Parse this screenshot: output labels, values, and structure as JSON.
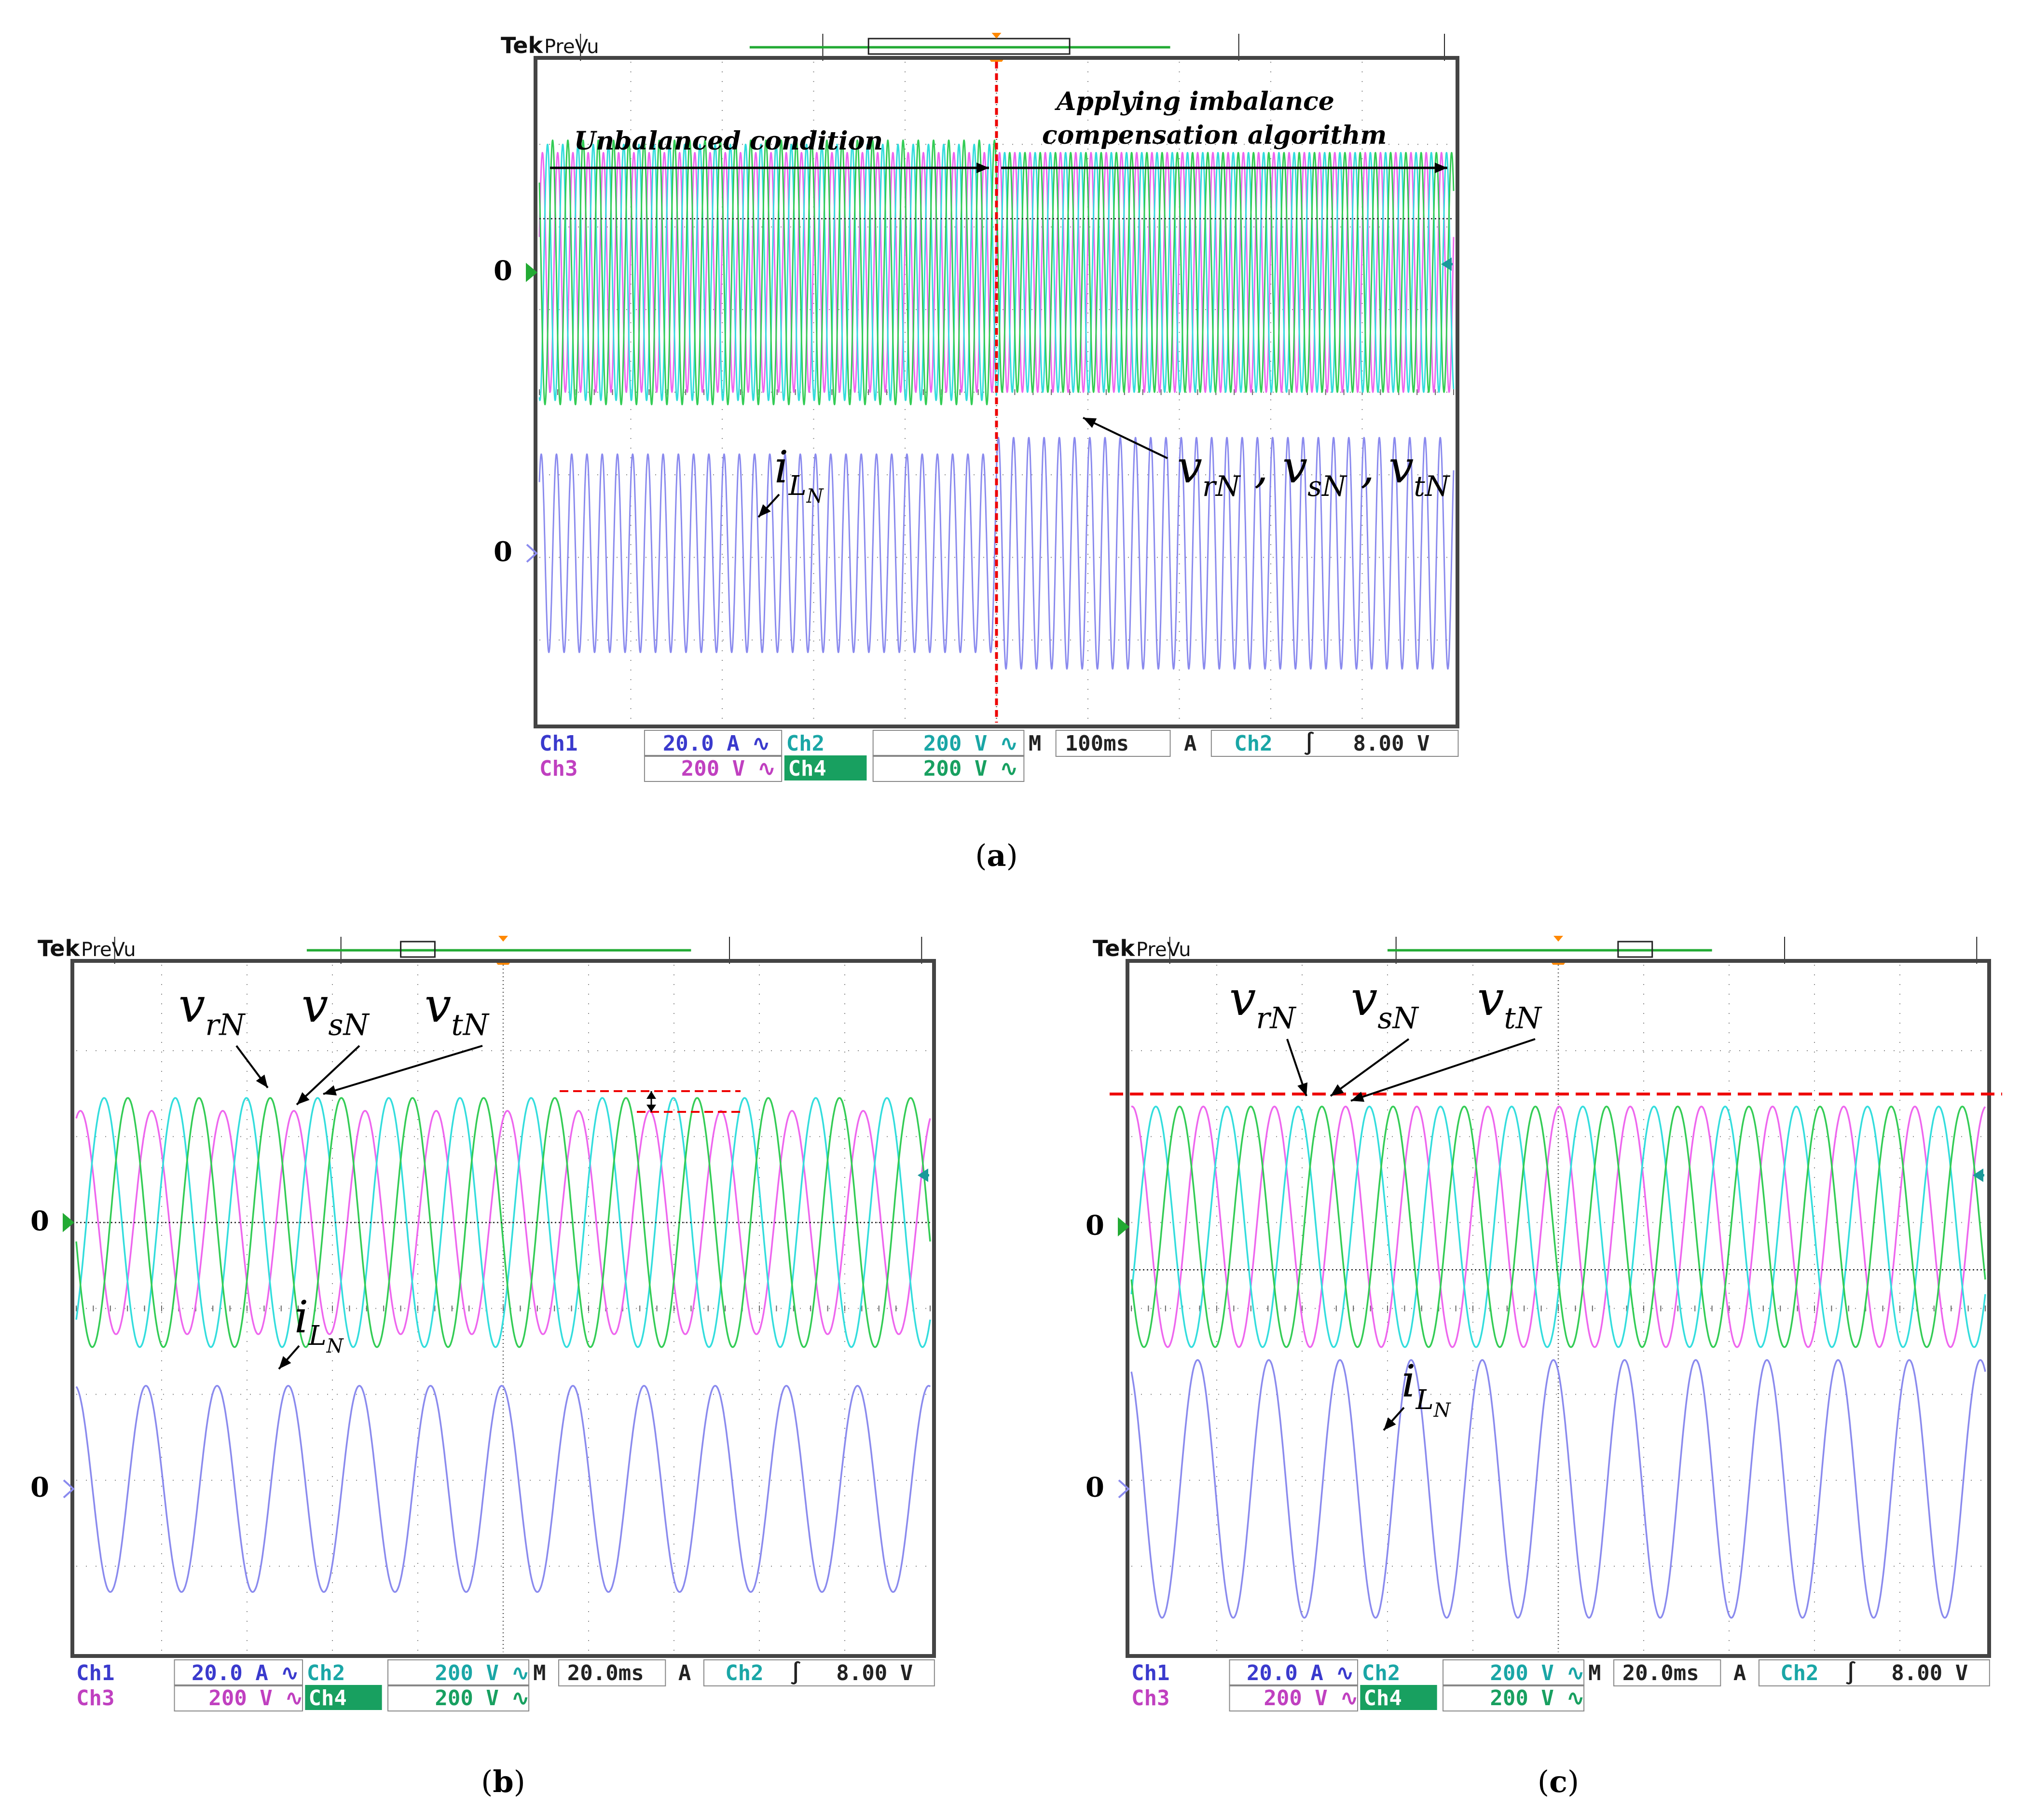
{
  "figure": {
    "panels": [
      {
        "id": "a",
        "caption_letter": "a",
        "brand": "Tek",
        "mode": "PreVu",
        "annotations": {
          "left_phase": "Unbalanced condition",
          "right_phase_line1": "Applying imbalance",
          "right_phase_line2": "compensation algorithm",
          "voltage_label": "v_rN , v_sN , v_tN",
          "current_label": "i_LN"
        },
        "ground_markers": [
          "0",
          "0"
        ],
        "settings": {
          "ch1_label": "Ch1",
          "ch1_scale": "20.0 A",
          "ch2_label": "Ch2",
          "ch2_scale": "200 V",
          "ch3_label": "Ch3",
          "ch3_scale": "200 V",
          "ch4_label": "Ch4",
          "ch4_scale": "200 V",
          "timebase_prefix": "M",
          "timebase": "100ms",
          "trigger_prefix": "A",
          "trigger_source": "Ch2",
          "trigger_level": "8.00 V"
        }
      },
      {
        "id": "b",
        "caption_letter": "b",
        "brand": "Tek",
        "mode": "PreVu",
        "annotations": {
          "vr": "v_rN",
          "vs": "v_sN",
          "vt": "v_tN",
          "current_label": "i_LN"
        },
        "ground_markers": [
          "0",
          "0"
        ],
        "settings": {
          "ch1_label": "Ch1",
          "ch1_scale": "20.0 A",
          "ch2_label": "Ch2",
          "ch2_scale": "200 V",
          "ch3_label": "Ch3",
          "ch3_scale": "200 V",
          "ch4_label": "Ch4",
          "ch4_scale": "200 V",
          "timebase_prefix": "M",
          "timebase": "20.0ms",
          "trigger_prefix": "A",
          "trigger_source": "Ch2",
          "trigger_level": "8.00 V"
        }
      },
      {
        "id": "c",
        "caption_letter": "c",
        "brand": "Tek",
        "mode": "PreVu",
        "annotations": {
          "vr": "v_rN",
          "vs": "v_sN",
          "vt": "v_tN",
          "current_label": "i_LN"
        },
        "ground_markers": [
          "0",
          "0"
        ],
        "settings": {
          "ch1_label": "Ch1",
          "ch1_scale": "20.0 A",
          "ch2_label": "Ch2",
          "ch2_scale": "200 V",
          "ch3_label": "Ch3",
          "ch3_scale": "200 V",
          "ch4_label": "Ch4",
          "ch4_scale": "200 V",
          "timebase_prefix": "M",
          "timebase": "20.0ms",
          "trigger_prefix": "A",
          "trigger_source": "Ch2",
          "trigger_level": "8.00 V"
        }
      }
    ]
  },
  "colors": {
    "ch1": "#3a3acd",
    "ch2": "#1aa6a6",
    "ch3": "#c040c0",
    "ch4": "#18a060",
    "wave_ch1": "#8a8aee",
    "wave_ch2": "#33dddd",
    "wave_ch3": "#ee66ee",
    "wave_ch4": "#33cc55",
    "marker_green": "#22aa33",
    "marker_orange": "#ff8800",
    "red_dashed": "#ee0000"
  },
  "chart_data": [
    {
      "panel": "a",
      "type": "line",
      "title": "",
      "xlabel": "",
      "ylabel": "",
      "time_per_div_ms": 100,
      "divisions": 10,
      "series": [
        {
          "name": "v_rN",
          "channel": "Ch3",
          "cycles_total": 60,
          "amplitude_div_before": 1.45,
          "amplitude_div_after": 1.45,
          "offset_div": 0.0
        },
        {
          "name": "v_sN",
          "channel": "Ch2",
          "cycles_total": 60,
          "amplitude_div_before": 1.55,
          "amplitude_div_after": 1.45,
          "offset_div": 0.0
        },
        {
          "name": "v_tN",
          "channel": "Ch4",
          "cycles_total": 60,
          "amplitude_div_before": 1.6,
          "amplitude_div_after": 1.45,
          "offset_div": 0.0
        },
        {
          "name": "i_LN",
          "channel": "Ch1",
          "cycles_total": 60,
          "amplitude_div_before": 1.2,
          "amplitude_div_after": 1.4,
          "offset_div": 0.0
        }
      ],
      "event_time_div": 5.0
    },
    {
      "panel": "b",
      "type": "line",
      "title": "",
      "xlabel": "",
      "ylabel": "",
      "time_per_div_ms": 20,
      "divisions": 10,
      "series": [
        {
          "name": "v_rN",
          "channel": "Ch3",
          "cycles_total": 12,
          "amplitude_div": 1.3,
          "offset_div": 0.0
        },
        {
          "name": "v_sN",
          "channel": "Ch2",
          "cycles_total": 12,
          "amplitude_div": 1.45,
          "offset_div": 0.0
        },
        {
          "name": "v_tN",
          "channel": "Ch4",
          "cycles_total": 12,
          "amplitude_div": 1.45,
          "offset_div": 0.0
        },
        {
          "name": "i_LN",
          "channel": "Ch1",
          "cycles_total": 12,
          "amplitude_div": 1.2,
          "offset_div": 0.0
        }
      ]
    },
    {
      "panel": "c",
      "type": "line",
      "title": "",
      "xlabel": "",
      "ylabel": "",
      "time_per_div_ms": 20,
      "divisions": 10,
      "series": [
        {
          "name": "v_rN",
          "channel": "Ch3",
          "cycles_total": 12,
          "amplitude_div": 1.4,
          "offset_div": 0.0
        },
        {
          "name": "v_sN",
          "channel": "Ch2",
          "cycles_total": 12,
          "amplitude_div": 1.4,
          "offset_div": 0.0
        },
        {
          "name": "v_tN",
          "channel": "Ch4",
          "cycles_total": 12,
          "amplitude_div": 1.4,
          "offset_div": 0.0
        },
        {
          "name": "i_LN",
          "channel": "Ch1",
          "cycles_total": 12,
          "amplitude_div": 1.5,
          "offset_div": 0.0
        }
      ]
    }
  ]
}
